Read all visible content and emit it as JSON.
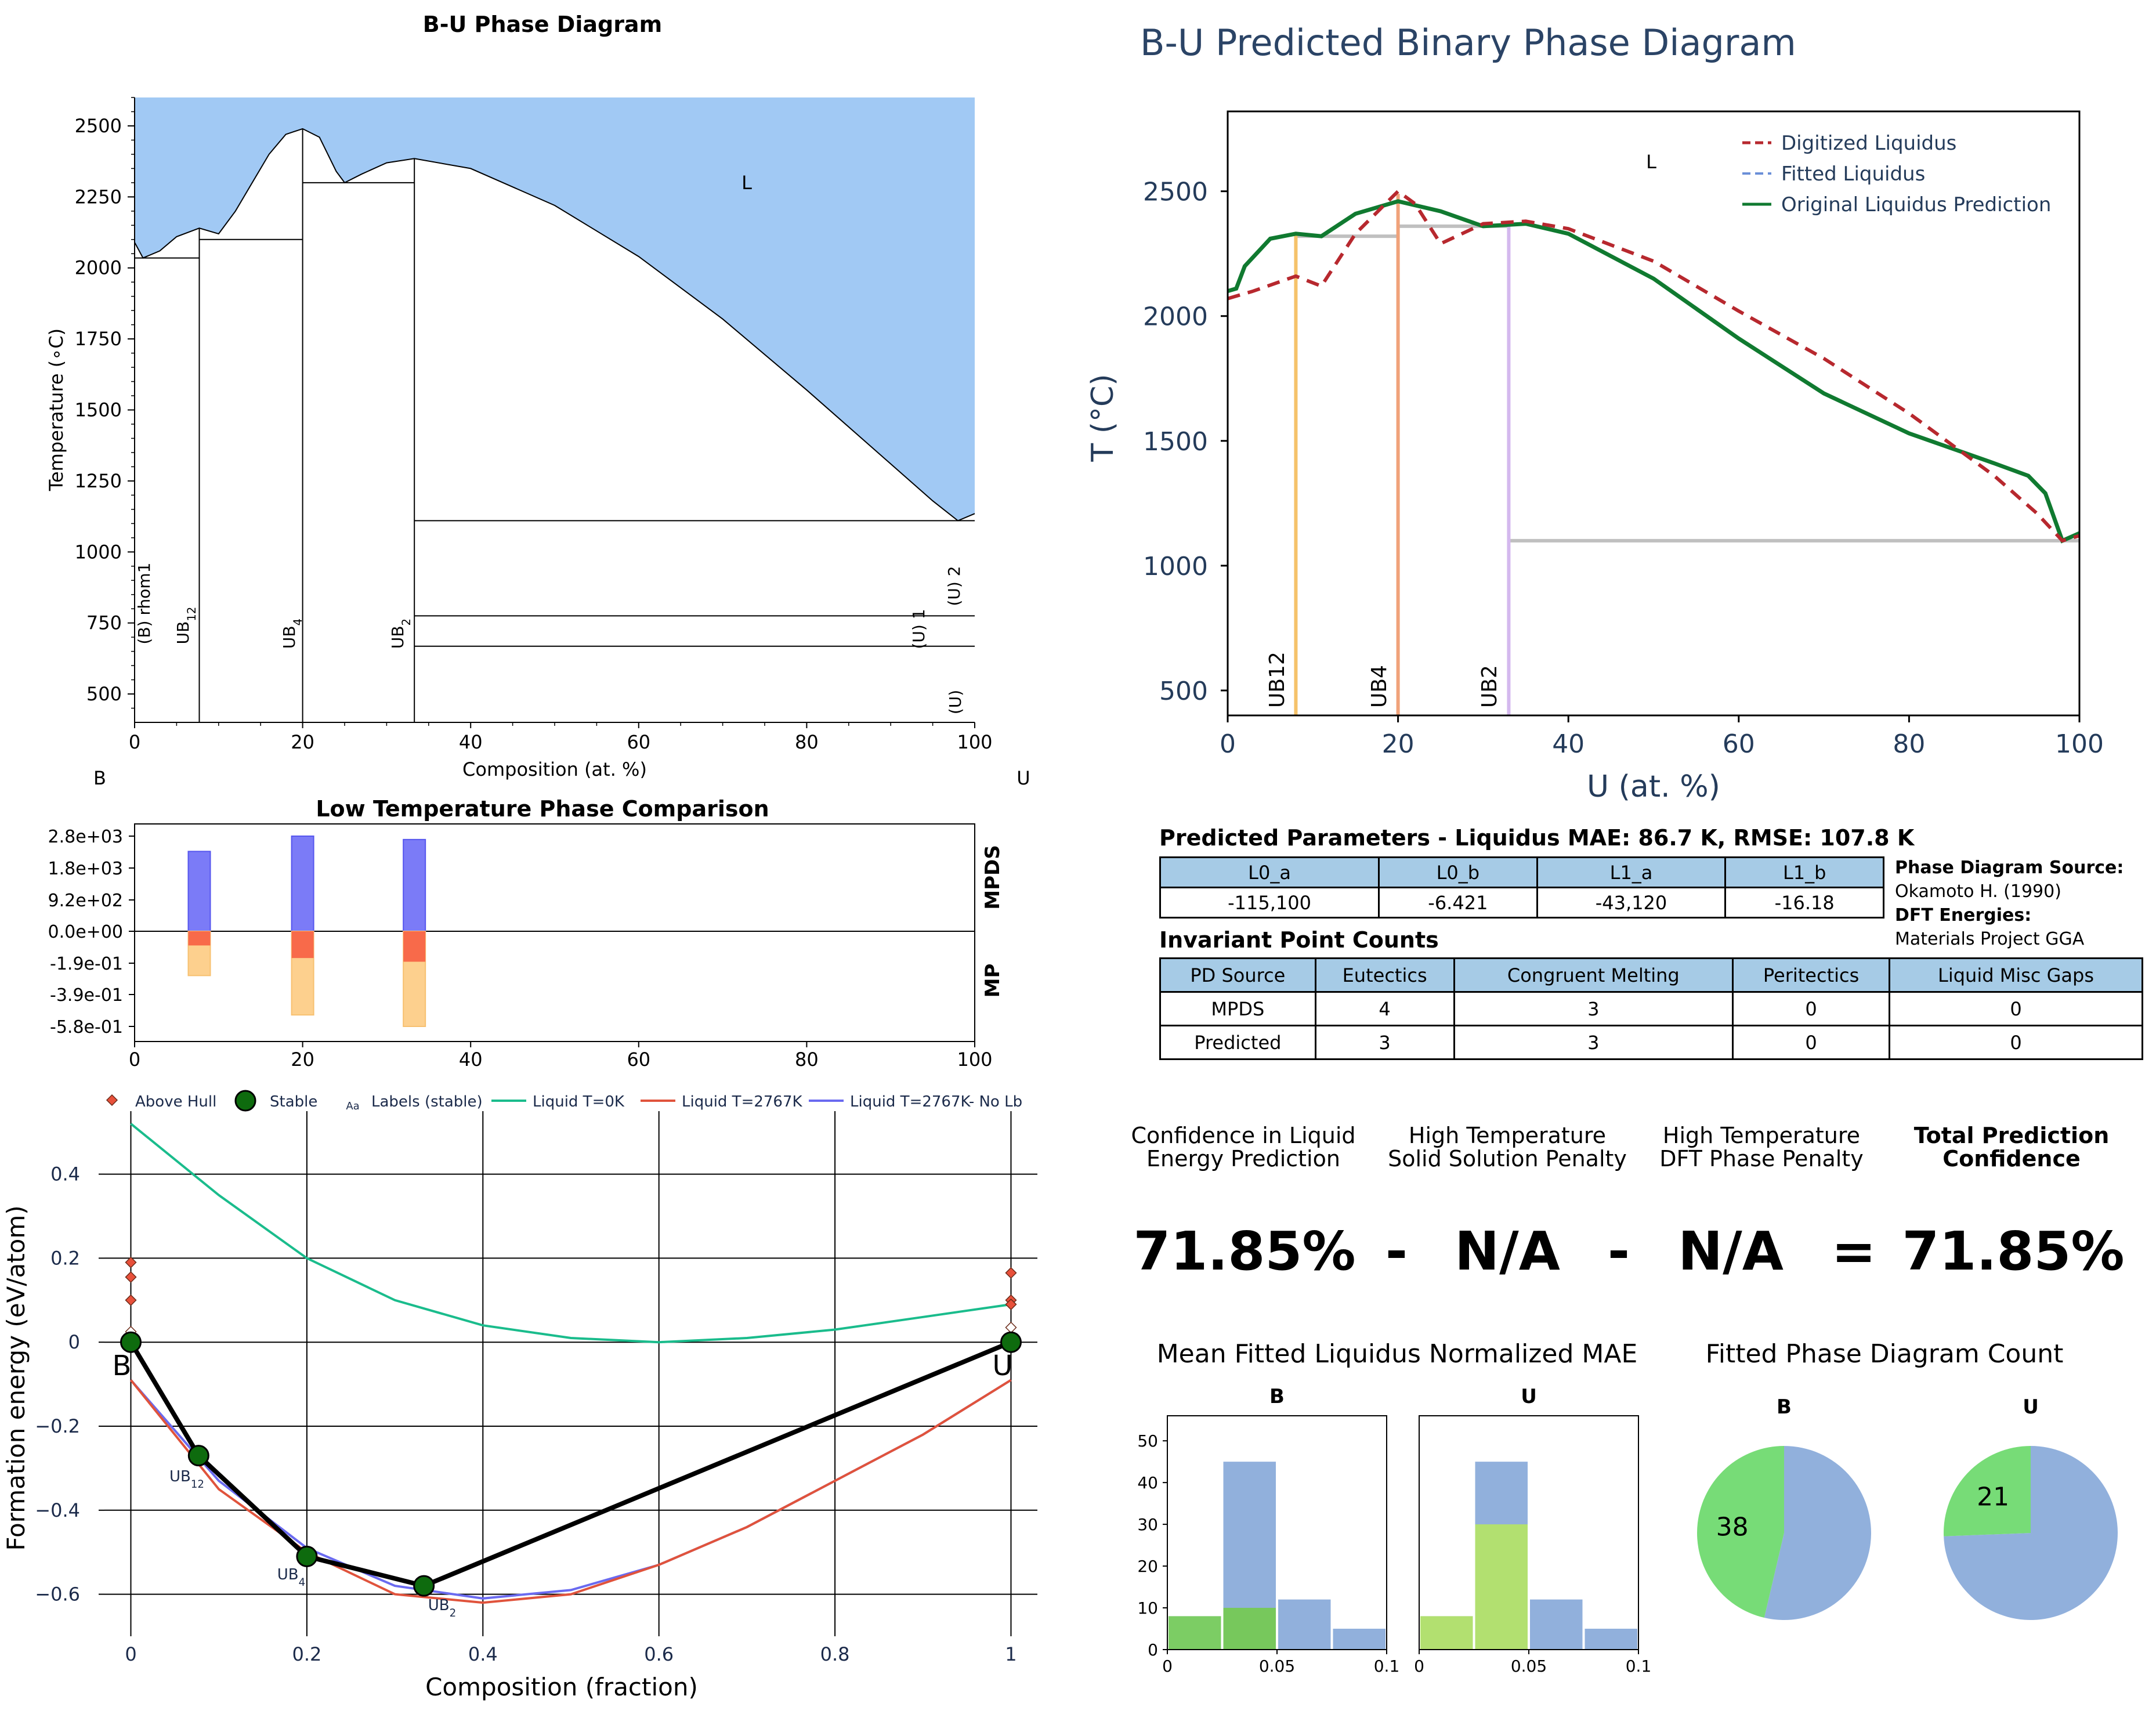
{
  "pd": {
    "title": "B-U Phase Diagram",
    "xlabel": "Composition (at. %)",
    "ylabel": "Temperature (∘C)",
    "left_element": "B",
    "right_element": "U",
    "liquid_label": "L",
    "xticks": [
      "0",
      "20",
      "40",
      "60",
      "80",
      "100"
    ],
    "yticks": [
      "500",
      "750",
      "1000",
      "1250",
      "1500",
      "1750",
      "2000",
      "2250",
      "2500"
    ],
    "phase_labels": [
      "(B) rhom1",
      "UB",
      "UB",
      "UB",
      "(U) 1",
      "(U) 2",
      "(U)"
    ],
    "phase_subs": [
      "12",
      "4",
      "2"
    ]
  },
  "cmp": {
    "title": "Low Temperature Phase Comparison",
    "yticks": [
      "2.8e+03",
      "1.8e+03",
      "9.2e+02",
      "0.0e+00",
      "-1.9e-01",
      "-3.9e-01",
      "-5.8e-01"
    ],
    "xticks": [
      "0",
      "20",
      "40",
      "60",
      "80",
      "100"
    ],
    "top_label": "MPDS",
    "bottom_label": "MP"
  },
  "hull": {
    "xlabel": "Composition (fraction)",
    "ylabel": "Formation energy (eV/atom)",
    "xticks": [
      "0",
      "0.2",
      "0.4",
      "0.6",
      "0.8",
      "1"
    ],
    "yticks": [
      "0.4",
      "0.2",
      "0",
      "−0.2",
      "−0.4",
      "−0.6"
    ],
    "legend": [
      "Above Hull",
      "Stable",
      "Labels (stable)",
      "Liquid T=0K",
      "Liquid T=2767K",
      "Liquid T=2767K- No Lb"
    ],
    "legend_aa": "Aa",
    "end_labels": [
      "B",
      "U"
    ],
    "phase_labels": [
      "UB",
      "UB",
      "UB"
    ],
    "phase_subs": [
      "12",
      "4",
      "2"
    ]
  },
  "pred": {
    "title": "B-U Predicted Binary Phase Diagram",
    "xlabel": "U (at. %)",
    "ylabel": "T (°C)",
    "liquid_label": "L",
    "legend": [
      "Digitized Liquidus",
      "Fitted Liquidus",
      "Original Liquidus Prediction"
    ],
    "xticks": [
      "0",
      "20",
      "40",
      "60",
      "80",
      "100"
    ],
    "yticks": [
      "500",
      "1000",
      "1500",
      "2000",
      "2500"
    ],
    "phase_labels": [
      "UB12",
      "UB4",
      "UB2"
    ]
  },
  "params": {
    "title": "Predicted Parameters - Liquidus MAE: 86.7 K, RMSE: 107.8 K",
    "headers": [
      "L0_a",
      "L0_b",
      "L1_a",
      "L1_b"
    ],
    "values": [
      "-115,100",
      "-6.421",
      "-43,120",
      "-16.18"
    ]
  },
  "sources": {
    "pd_source_label": "Phase Diagram Source:",
    "pd_source_value": "Okamoto H. (1990)",
    "dft_label": "DFT Energies:",
    "dft_value": "Materials Project GGA"
  },
  "invariants": {
    "title": "Invariant Point Counts",
    "headers": [
      "PD Source",
      "Eutectics",
      "Congruent Melting",
      "Peritectics",
      "Liquid Misc Gaps"
    ],
    "rows": [
      [
        "MPDS",
        "4",
        "3",
        "0",
        "0"
      ],
      [
        "Predicted",
        "3",
        "3",
        "0",
        "0"
      ]
    ]
  },
  "confidence": {
    "label1_a": "Confidence in Liquid",
    "label1_b": "Energy Prediction",
    "label2_a": "High Temperature",
    "label2_b": "Solid Solution Penalty",
    "label3_a": "High Temperature",
    "label3_b": "DFT Phase Penalty",
    "label4_a": "Total Prediction",
    "label4_b": "Confidence",
    "value1": "71.85%",
    "op1": "-",
    "value2": "N/A",
    "op2": "-",
    "value3": "N/A",
    "op3": "=",
    "value4": "71.85%"
  },
  "mae": {
    "title": "Mean Fitted Liquidus Normalized MAE",
    "panel_b": "B",
    "panel_u": "U",
    "yticks": [
      "0",
      "10",
      "20",
      "30",
      "40",
      "50"
    ],
    "xticks": [
      "0",
      "0.05",
      "0.1"
    ]
  },
  "count": {
    "title": "Fitted Phase Diagram Count",
    "panel_b": "B",
    "panel_u": "U",
    "b_value": "38",
    "u_value": "21"
  },
  "chart_data": [
    {
      "type": "area",
      "id": "experimental_phase_diagram",
      "title": "B-U Phase Diagram",
      "xlabel": "Composition (at. %)",
      "ylabel": "Temperature (∘C)",
      "xlim": [
        0,
        100
      ],
      "ylim": [
        400,
        2600
      ],
      "liquidus": {
        "x": [
          0,
          1,
          3,
          5,
          7.7,
          10,
          12,
          14,
          16,
          18,
          20,
          22,
          24,
          25,
          27,
          30,
          33.3,
          40,
          50,
          60,
          70,
          80,
          90,
          95,
          98,
          100
        ],
        "y": [
          2090,
          2035,
          2060,
          2110,
          2140,
          2120,
          2200,
          2300,
          2400,
          2470,
          2490,
          2460,
          2340,
          2300,
          2330,
          2370,
          2385,
          2350,
          2220,
          2040,
          1820,
          1570,
          1310,
          1180,
          1110,
          1135
        ]
      },
      "horizontal_lines": [
        {
          "xmin": 0,
          "xmax": 7.7,
          "y": 2035
        },
        {
          "xmin": 7.7,
          "xmax": 20,
          "y": 2100
        },
        {
          "xmin": 20,
          "xmax": 33.3,
          "y": 2300
        },
        {
          "xmin": 33.3,
          "xmax": 100,
          "y": 1110
        },
        {
          "xmin": 33.3,
          "xmax": 100,
          "y": 775
        },
        {
          "xmin": 33.3,
          "xmax": 100,
          "y": 668
        }
      ],
      "compound_lines": [
        {
          "x": 7.7,
          "ymax": 2140
        },
        {
          "x": 20,
          "ymax": 2490
        },
        {
          "x": 33.3,
          "ymax": 2385
        }
      ]
    },
    {
      "type": "bar",
      "id": "low_temperature_phase_comparison",
      "title": "Low Temperature Phase Comparison",
      "x": [
        7.7,
        20,
        33.3
      ],
      "series": [
        {
          "name": "MPDS",
          "values": [
            2350,
            2800,
            2700
          ]
        },
        {
          "name": "MP",
          "values": [
            -0.27,
            -0.51,
            -0.58
          ]
        }
      ],
      "xlim": [
        0,
        100
      ]
    },
    {
      "type": "line",
      "id": "formation_energy_hull",
      "xlabel": "Composition (fraction)",
      "ylabel": "Formation energy (eV/atom)",
      "xlim": [
        -0.03,
        1.03
      ],
      "ylim": [
        -0.7,
        0.55
      ],
      "series": [
        {
          "name": "Stable",
          "x": [
            0,
            0.077,
            0.2,
            0.333,
            1
          ],
          "y": [
            0,
            -0.27,
            -0.51,
            -0.58,
            0
          ]
        },
        {
          "name": "Above Hull",
          "x": [
            0,
            0,
            0,
            0,
            0,
            1,
            1,
            1,
            1
          ],
          "y": [
            0.19,
            0.155,
            0.1,
            0.025,
            0.005,
            0.165,
            0.1,
            0.09,
            0.035
          ]
        },
        {
          "name": "Liquid T=0K",
          "x": [
            0,
            0.1,
            0.2,
            0.3,
            0.4,
            0.5,
            0.6,
            0.7,
            0.8,
            0.9,
            1
          ],
          "y": [
            0.52,
            0.35,
            0.2,
            0.1,
            0.04,
            0.01,
            0.0,
            0.01,
            0.03,
            0.06,
            0.09
          ]
        },
        {
          "name": "Liquid T=2767K",
          "x": [
            0,
            0.1,
            0.2,
            0.3,
            0.4,
            0.5,
            0.6,
            0.7,
            0.8,
            0.9,
            1
          ],
          "y": [
            -0.09,
            -0.35,
            -0.5,
            -0.6,
            -0.62,
            -0.6,
            -0.53,
            -0.44,
            -0.33,
            -0.22,
            -0.09
          ]
        },
        {
          "name": "Liquid T=2767K- No Lb",
          "x": [
            0,
            0.1,
            0.2,
            0.3,
            0.4,
            0.5,
            0.6,
            0.7,
            0.8,
            0.9,
            1
          ],
          "y": [
            -0.09,
            -0.33,
            -0.49,
            -0.58,
            -0.61,
            -0.59,
            -0.53,
            -0.44,
            -0.33,
            -0.22,
            -0.09
          ]
        }
      ]
    },
    {
      "type": "line",
      "id": "predicted_phase_diagram",
      "title": "B-U Predicted Binary Phase Diagram",
      "xlabel": "U (at. %)",
      "ylabel": "T (°C)",
      "xlim": [
        0,
        100
      ],
      "ylim": [
        400,
        2820
      ],
      "series": [
        {
          "name": "Digitized Liquidus",
          "x": [
            0,
            3,
            8,
            11,
            15,
            20,
            22,
            25,
            30,
            35,
            40,
            50,
            60,
            70,
            80,
            90,
            95,
            98,
            100
          ],
          "y": [
            2070,
            2100,
            2160,
            2120,
            2330,
            2500,
            2450,
            2290,
            2370,
            2380,
            2350,
            2220,
            2020,
            1830,
            1610,
            1360,
            1210,
            1100,
            1120
          ]
        },
        {
          "name": "Original Liquidus Prediction",
          "x": [
            0,
            1,
            2,
            5,
            8,
            11,
            15,
            20,
            25,
            30,
            35,
            40,
            50,
            60,
            70,
            80,
            90,
            94,
            96,
            98,
            100
          ],
          "y": [
            2100,
            2110,
            2200,
            2310,
            2330,
            2320,
            2410,
            2460,
            2420,
            2360,
            2370,
            2330,
            2150,
            1910,
            1690,
            1530,
            1410,
            1360,
            1290,
            1100,
            1130
          ]
        }
      ],
      "phase_lines": [
        {
          "name": "UB12",
          "x": 8,
          "color": "#f5c26a"
        },
        {
          "name": "UB4",
          "x": 20,
          "color": "#f0a27a"
        },
        {
          "name": "UB2",
          "x": 33,
          "color": "#d4b8ee"
        }
      ],
      "horizontal_lines": [
        {
          "xmin": 8,
          "xmax": 20,
          "y": 2320
        },
        {
          "xmin": 20,
          "xmax": 33,
          "y": 2360
        },
        {
          "xmin": 33,
          "xmax": 100,
          "y": 1100
        }
      ],
      "colors": {
        "digitized": "#b7282e",
        "fitted": "#6b8fd8",
        "original": "#107a30"
      }
    },
    {
      "type": "bar",
      "id": "mae_histogram_B",
      "title": "B",
      "x": [
        0.0125,
        0.0375,
        0.0625,
        0.0875
      ],
      "series": [
        {
          "name": "total",
          "values": [
            8,
            45,
            12,
            5
          ]
        },
        {
          "name": "highlight",
          "values": [
            8,
            10,
            0,
            0
          ]
        }
      ],
      "xlim": [
        0,
        0.1
      ],
      "ylim": [
        0,
        56
      ]
    },
    {
      "type": "bar",
      "id": "mae_histogram_U",
      "title": "U",
      "x": [
        0.0125,
        0.0375,
        0.0625,
        0.0875
      ],
      "series": [
        {
          "name": "total",
          "values": [
            8,
            45,
            12,
            5
          ]
        },
        {
          "name": "highlight",
          "values": [
            8,
            30,
            0,
            0
          ]
        }
      ],
      "xlim": [
        0,
        0.1
      ],
      "ylim": [
        0,
        56
      ]
    },
    {
      "type": "pie",
      "id": "fitted_count_pies",
      "pies": [
        {
          "title": "B",
          "values": [
            38,
            44
          ],
          "labels": [
            "38",
            ""
          ]
        },
        {
          "title": "U",
          "values": [
            21,
            61
          ],
          "labels": [
            "21",
            ""
          ]
        }
      ],
      "colors": [
        "#77dc77",
        "#91b0dc"
      ]
    }
  ]
}
